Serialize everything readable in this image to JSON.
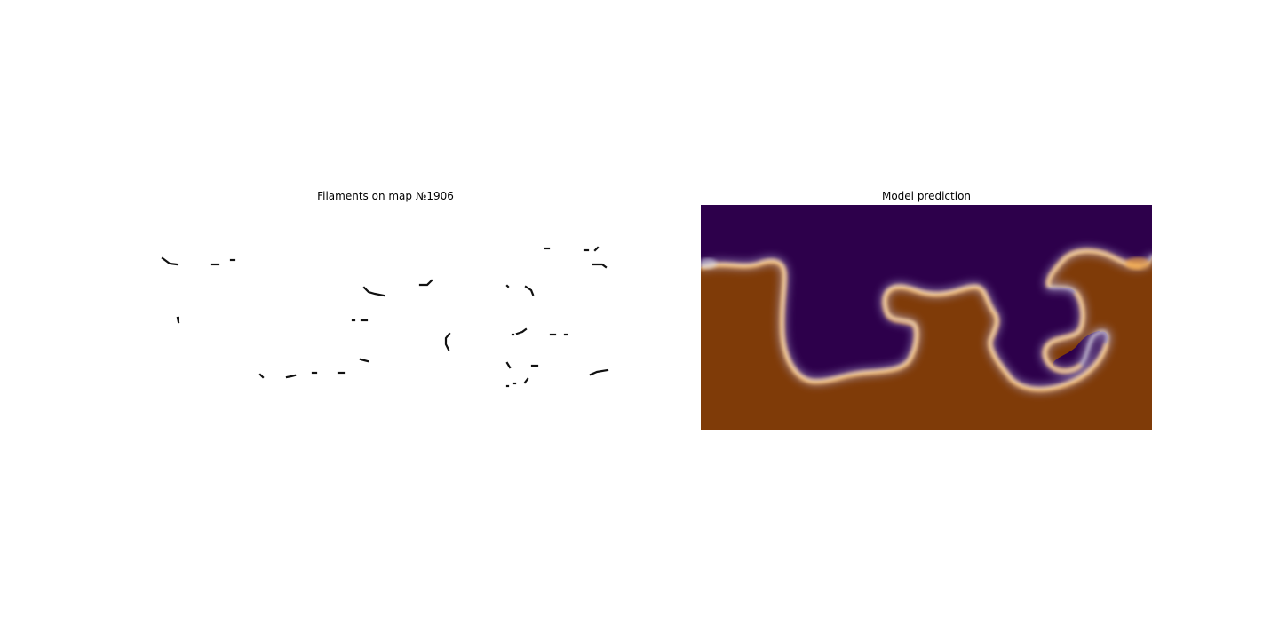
{
  "figure": {
    "left_panel": {
      "title": "Filaments on map №1906"
    },
    "right_panel": {
      "title": "Model prediction"
    }
  },
  "colors": {
    "filament": "#111111",
    "prediction_low": "#2d004b",
    "prediction_high": "#7f3b08",
    "boundary_light": "#f7f7f7",
    "boundary_orange": "#f1a340",
    "boundary_violet": "#b2abd2"
  }
}
